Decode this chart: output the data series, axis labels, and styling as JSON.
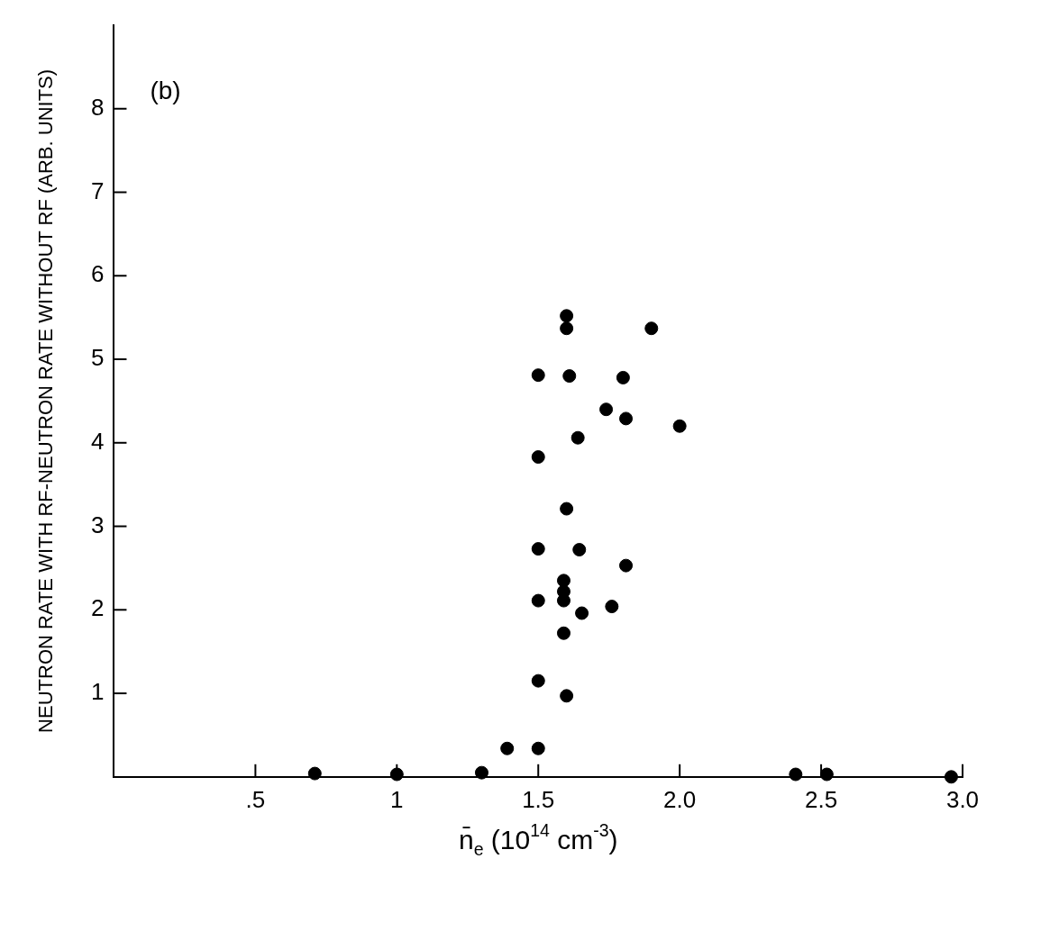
{
  "chart_data": {
    "type": "scatter",
    "xlabel": "n̄$_{e}$ (10$^{14}$ cm$^{-3}$)",
    "ylabel": "NEUTRON RATE WITH RF-NEUTRON RATE WITHOUT RF (ARB. UNITS)",
    "annotations": [
      "(b)"
    ],
    "xlim": [
      0,
      3
    ],
    "xticks": [
      {
        "value": 0.5,
        "label": ".5"
      },
      1,
      1.5,
      {
        "value": 2,
        "label": "2.0"
      },
      2.5,
      {
        "value": 3,
        "label": "3.0"
      }
    ],
    "ylim": [
      0,
      9
    ],
    "yticks": [
      1,
      2,
      3,
      4,
      5,
      6,
      7,
      8
    ],
    "marker": "circle",
    "series": [
      {
        "color": "#000000",
        "x": [
          0.71,
          1.0,
          1.3,
          1.39,
          1.5,
          1.5,
          1.5,
          1.5,
          1.6,
          1.59,
          1.59,
          1.59,
          1.59,
          1.6,
          1.654,
          1.645,
          1.76,
          1.81,
          2.41,
          2.52,
          2.96,
          2.0,
          1.9,
          1.8,
          1.81,
          1.74,
          1.6,
          1.6,
          1.61,
          1.64,
          1.5,
          1.5
        ],
        "values": [
          0.04,
          0.03,
          0.05,
          0.34,
          0.34,
          1.15,
          2.11,
          2.73,
          0.97,
          1.72,
          2.11,
          2.22,
          2.35,
          3.21,
          1.96,
          2.72,
          2.04,
          2.53,
          0.03,
          0.03,
          0,
          4.2,
          5.37,
          4.78,
          4.29,
          4.4,
          5.52,
          5.37,
          4.8,
          4.06,
          4.81,
          3.83
        ]
      }
    ]
  }
}
